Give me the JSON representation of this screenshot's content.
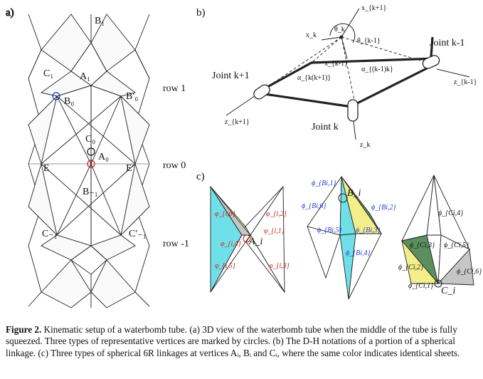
{
  "panels": {
    "a": {
      "tag": "a)",
      "vertices": {
        "B1": "B₁",
        "C1": "C₁",
        "A1": "A₁",
        "B0": "B₀",
        "B0p": "B′₀",
        "C0": "C₀",
        "A0": "A₀",
        "E": "E",
        "Ep": "E′",
        "Bm1": "B₋₁",
        "Cm1": "C₋₁",
        "Cm1p": "C′₋₁"
      },
      "rows": [
        "row 1",
        "row 0",
        "row -1"
      ]
    },
    "b": {
      "tag": "b)",
      "joints": [
        "Joint k-1",
        "Joint k+1",
        "Joint k"
      ],
      "axes": {
        "xk1": "x_{k+1}",
        "xk": "x_k",
        "xkm1": "x_{k-1}",
        "zkm1": "z_{k-1}",
        "zkp1": "z_{k+1}",
        "zk": "z_k"
      },
      "angles": {
        "theta_k": "θ_k",
        "theta_km1": "θ_{k-1}",
        "alpha_kkp1": "α_{k(k+1)}",
        "alpha_km1k": "α_{(k-1)k}"
      }
    },
    "c": {
      "tag": "c)",
      "A_vertex": {
        "label": "A_i",
        "angles": [
          "φ_{i,6}",
          "φ_{i,2}",
          "φ_{i,1}",
          "φ_{i,4}",
          "φ_{i,5}",
          "φ_{i,3}"
        ]
      },
      "B_vertex": {
        "label": "B_i",
        "angles": [
          "ϕ_{Bi,1}",
          "ϕ_{Bi,6}",
          "ϕ_{Bi,2}",
          "ϕ_{Bi,5}",
          "ϕ_{Bi,3}",
          "ϕ_{Bi,4}"
        ]
      },
      "C_vertex": {
        "label": "C_i",
        "angles": [
          "ϕ_{Ci,4}",
          "ϕ_{Ci,3}",
          "ϕ_{Ci,5}",
          "ϕ_{Ci,2}",
          "ϕ_{Ci,6}",
          "ϕ_{Ci,1}"
        ]
      }
    }
  },
  "colors": {
    "cyan": "#6fe0ea",
    "yellow": "#f3ee8a",
    "green": "#5c8f60",
    "gray": "#c6c6c6",
    "blue_label": "#1f3bd1",
    "red_label": "#c8201a"
  },
  "caption": {
    "label": "Figure 2.",
    "text": "Kinematic setup of a waterbomb tube. (a) 3D view of the waterbomb tube when the middle of the tube is fully squeezed. Three types of representative vertices are marked by circles. (b) The D-H notations of a portion of a spherical linkage. (c) Three types of spherical 6R linkages at vertices Aᵢ, Bᵢ and Cᵢ, where the same color indicates identical sheets."
  }
}
